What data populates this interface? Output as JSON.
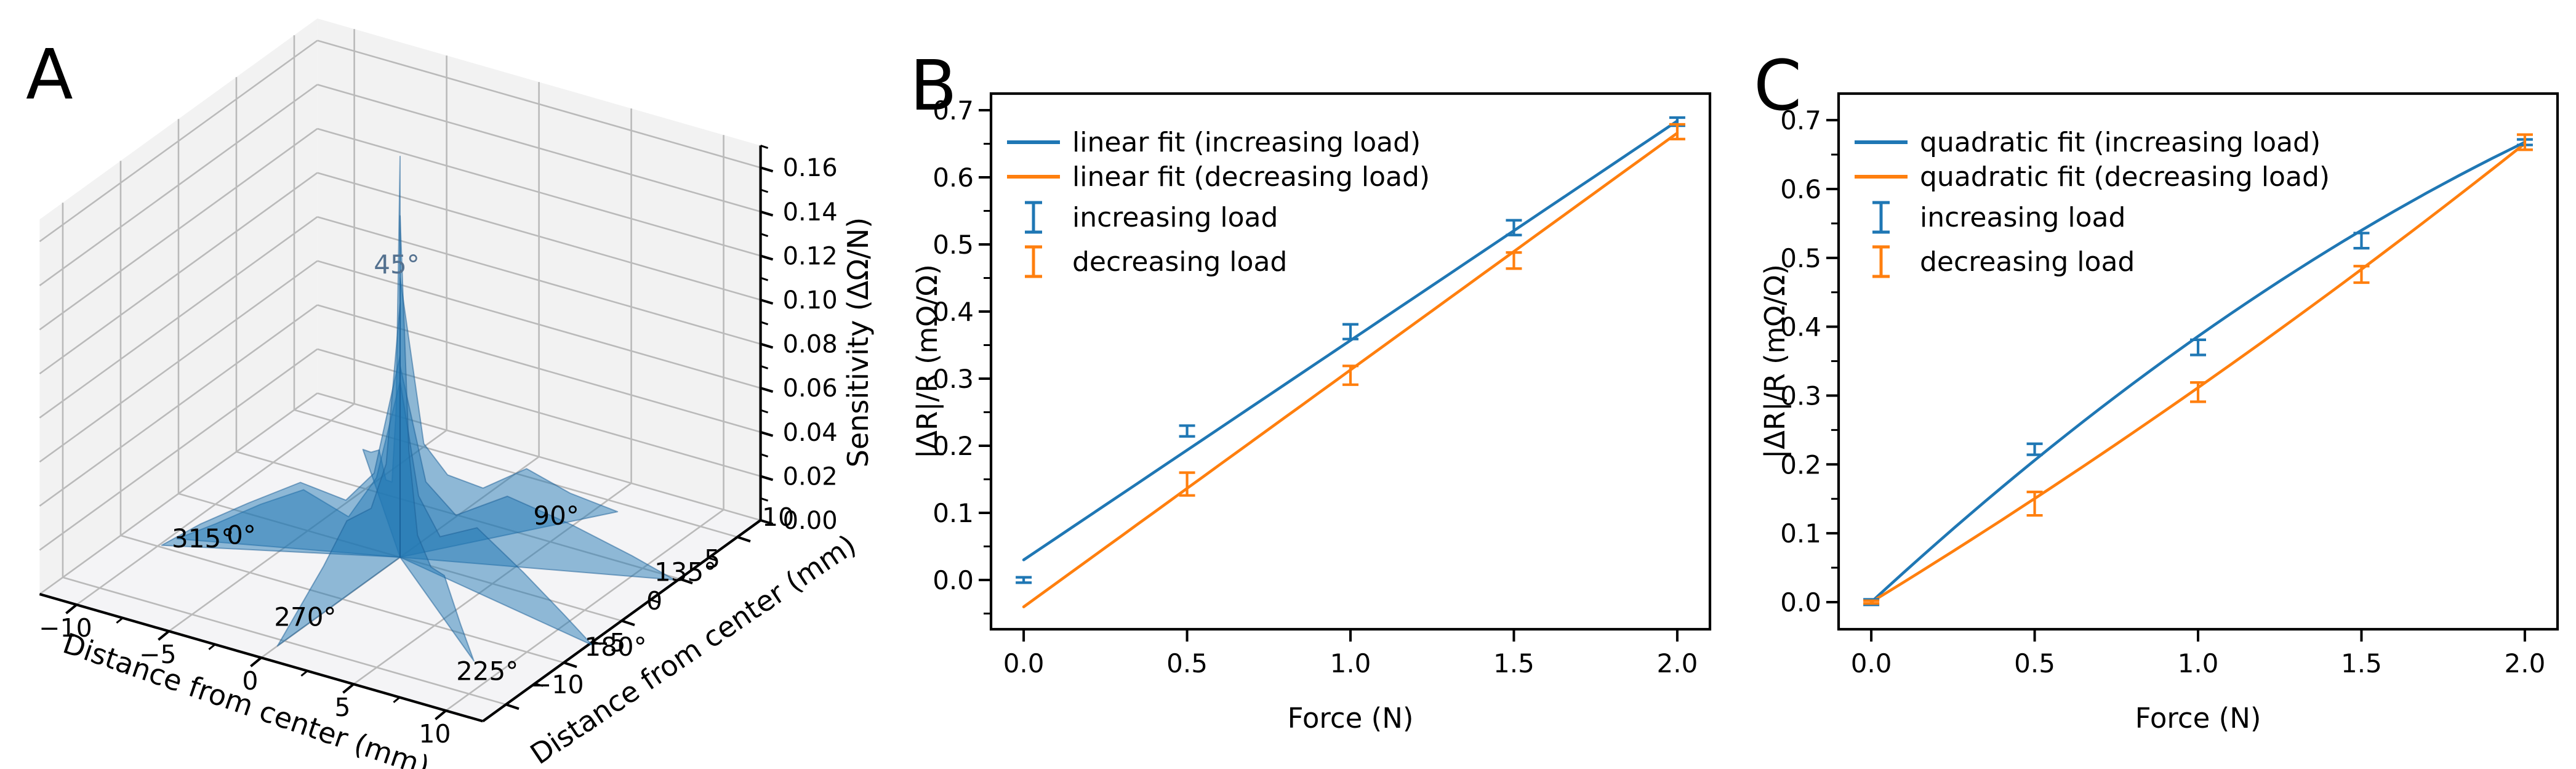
{
  "figure": {
    "background": "#ffffff",
    "colors": {
      "blue": "#1f77b4",
      "orange": "#ff7f0e",
      "grid_gray": "#bababa",
      "pane_gray": "#f2f2f2"
    }
  },
  "chart_data": [
    {
      "id": "A",
      "type": "3d-star-surface",
      "title_letter": "A",
      "xlabel": "Distance from center (mm)",
      "ylabel": "Distance from center (mm)",
      "zlabel": "Sensitivity (ΔΩ/N)",
      "xtick_labels": [
        "−10",
        "−5",
        "0",
        "5",
        "10"
      ],
      "xtick_values": [
        -10,
        -5,
        0,
        5,
        10
      ],
      "ytick_labels": [
        "−10",
        "−5",
        "0",
        "5",
        "10"
      ],
      "ytick_values": [
        -10,
        -5,
        0,
        5,
        10
      ],
      "ztick_labels": [
        "0.00",
        "0.02",
        "0.04",
        "0.06",
        "0.08",
        "0.10",
        "0.12",
        "0.14",
        "0.16"
      ],
      "ztick_values": [
        0.0,
        0.02,
        0.04,
        0.06,
        0.08,
        0.1,
        0.12,
        0.14,
        0.16
      ],
      "xlim": [
        -12,
        12
      ],
      "ylim": [
        -12,
        12
      ],
      "zlim": [
        0,
        0.17
      ],
      "surface_color": "#1f77b4",
      "surface_alpha": 0.48,
      "peak_sensitivity": 0.155,
      "blades": [
        {
          "label": "0°",
          "angle_deg": 202,
          "label_r": 7.4,
          "label_z": 0,
          "profile": [
            [
              0,
              0.068
            ],
            [
              1.1,
              0.03
            ],
            [
              2.4,
              0.014
            ],
            [
              4.5,
              0.023
            ],
            [
              6.5,
              0.016
            ],
            [
              8.6,
              0.007
            ],
            [
              10.4,
              0
            ]
          ]
        },
        {
          "label": "45°",
          "angle_deg": 131,
          "label_r": 1.0,
          "label_z": 0.106,
          "profile": [
            [
              0,
              0.155
            ],
            [
              1.2,
              0.052
            ],
            [
              2.4,
              0.02
            ],
            [
              4.2,
              0.014
            ],
            [
              6.2,
              0.018
            ],
            [
              8.6,
              0.008
            ],
            [
              11.0,
              0
            ]
          ]
        },
        {
          "label": "90°",
          "angle_deg": 57,
          "label_r": 7.9,
          "label_z": 0,
          "profile": [
            [
              0,
              0.108
            ],
            [
              1.2,
              0.042
            ],
            [
              2.4,
              0.028
            ],
            [
              4.2,
              0.02
            ],
            [
              6.4,
              0.024
            ],
            [
              8.6,
              0.011
            ],
            [
              11.0,
              0
            ]
          ]
        },
        {
          "label": "135°",
          "angle_deg": 22,
          "label_r": 13.3,
          "label_z": 0,
          "profile": [
            [
              0,
              0.074
            ],
            [
              1.2,
              0.03
            ],
            [
              2.6,
              0.018
            ],
            [
              5.0,
              0.027
            ],
            [
              8.0,
              0.018
            ],
            [
              10.8,
              0.008
            ],
            [
              12.8,
              0
            ]
          ]
        },
        {
          "label": "180°",
          "angle_deg": -13,
          "label_r": 14.0,
          "label_z": 0,
          "profile": [
            [
              0,
              0.068
            ],
            [
              1.2,
              0.027
            ],
            [
              2.6,
              0.015
            ],
            [
              5.0,
              0.025
            ],
            [
              8.0,
              0.016
            ],
            [
              10.6,
              0.007
            ],
            [
              12.5,
              0
            ]
          ]
        },
        {
          "label": "225°",
          "angle_deg": -40,
          "label_r": 13.0,
          "label_z": 0,
          "profile": [
            [
              0,
              0.132
            ],
            [
              1.3,
              0.046
            ],
            [
              2.6,
              0.018
            ],
            [
              4.6,
              0.013
            ],
            [
              6.6,
              0.017
            ],
            [
              9.0,
              0.007
            ],
            [
              11.0,
              0
            ]
          ]
        },
        {
          "label": "270°",
          "angle_deg": -90,
          "label_r": 8.2,
          "label_z": 0,
          "profile": [
            [
              0,
              0.098
            ],
            [
              1.2,
              0.04
            ],
            [
              2.5,
              0.027
            ],
            [
              4.6,
              0.029
            ],
            [
              6.6,
              0.018
            ],
            [
              8.6,
              0.009
            ],
            [
              10.6,
              0
            ]
          ]
        },
        {
          "label": "315°",
          "angle_deg": -154,
          "label_r": 9.1,
          "label_z": 0,
          "profile": [
            [
              0,
              0.078
            ],
            [
              1.2,
              0.032
            ],
            [
              2.5,
              0.021
            ],
            [
              4.6,
              0.027
            ],
            [
              7.0,
              0.018
            ],
            [
              9.2,
              0.009
            ],
            [
              11.0,
              0
            ]
          ]
        }
      ]
    },
    {
      "id": "B",
      "type": "line+errorbar",
      "title_letter": "B",
      "xlabel": "Force (N)",
      "ylabel": "|ΔR|/R (mΩ/Ω)",
      "xtick_labels": [
        "0.0",
        "0.5",
        "1.0",
        "1.5",
        "2.0"
      ],
      "xtick_values": [
        0.0,
        0.5,
        1.0,
        1.5,
        2.0
      ],
      "ytick_labels": [
        "0.0",
        "0.1",
        "0.2",
        "0.3",
        "0.4",
        "0.5",
        "0.6",
        "0.7"
      ],
      "ytick_values": [
        0.0,
        0.1,
        0.2,
        0.3,
        0.4,
        0.5,
        0.6,
        0.7
      ],
      "xlim": [
        -0.1,
        2.1
      ],
      "ylim": [
        -0.0734,
        0.7248
      ],
      "y_minor_step": 0.05,
      "legend": [
        "linear fit (increasing load)",
        "linear fit (decreasing load)",
        "increasing load",
        "decreasing load"
      ],
      "series": [
        {
          "name": "linear fit (increasing load)",
          "kind": "fit-line",
          "color": "#1f77b4",
          "poly": [
            0.03,
            0.327
          ],
          "x_range": [
            0,
            2
          ]
        },
        {
          "name": "linear fit (decreasing load)",
          "kind": "fit-line",
          "color": "#ff7f0e",
          "poly": [
            -0.04,
            0.353
          ],
          "x_range": [
            0,
            2
          ]
        },
        {
          "name": "increasing load",
          "kind": "errorbar",
          "color": "#1f77b4",
          "x": [
            0.0,
            0.5,
            1.0,
            1.5,
            2.0
          ],
          "y": [
            0.0,
            0.222,
            0.37,
            0.525,
            0.683
          ],
          "yerr": [
            0.004,
            0.008,
            0.011,
            0.011,
            0.006
          ]
        },
        {
          "name": "decreasing load",
          "kind": "errorbar",
          "color": "#ff7f0e",
          "x": [
            0.5,
            1.0,
            1.5,
            2.0
          ],
          "y": [
            0.143,
            0.305,
            0.476,
            0.668
          ],
          "yerr": [
            0.017,
            0.014,
            0.012,
            0.011
          ]
        }
      ]
    },
    {
      "id": "C",
      "type": "line+errorbar",
      "title_letter": "C",
      "xlabel": "Force (N)",
      "ylabel": "|ΔR|/R (mΩ/Ω)",
      "xtick_labels": [
        "0.0",
        "0.5",
        "1.0",
        "1.5",
        "2.0"
      ],
      "xtick_values": [
        0.0,
        0.5,
        1.0,
        1.5,
        2.0
      ],
      "ytick_labels": [
        "0.0",
        "0.1",
        "0.2",
        "0.3",
        "0.4",
        "0.5",
        "0.6",
        "0.7"
      ],
      "ytick_values": [
        0.0,
        0.1,
        0.2,
        0.3,
        0.4,
        0.5,
        0.6,
        0.7
      ],
      "xlim": [
        -0.1,
        2.1
      ],
      "ylim": [
        -0.0394,
        0.7386
      ],
      "y_minor_step": 0.05,
      "legend": [
        "quadratic fit (increasing load)",
        "quadratic fit (decreasing load)",
        "increasing load",
        "decreasing load"
      ],
      "series": [
        {
          "name": "quadratic fit (increasing load)",
          "kind": "fit-line",
          "color": "#1f77b4",
          "poly": [
            0.0,
            0.438,
            -0.052
          ],
          "x_range": [
            0,
            2
          ]
        },
        {
          "name": "quadratic fit (decreasing load)",
          "kind": "fit-line",
          "color": "#ff7f0e",
          "poly": [
            0.0,
            0.29,
            0.0215
          ],
          "x_range": [
            0,
            2
          ]
        },
        {
          "name": "increasing load",
          "kind": "errorbar",
          "color": "#1f77b4",
          "x": [
            0.0,
            0.5,
            1.0,
            1.5,
            2.0
          ],
          "y": [
            0.0,
            0.222,
            0.37,
            0.525,
            0.668
          ],
          "yerr": [
            0.004,
            0.008,
            0.011,
            0.011,
            0.004
          ]
        },
        {
          "name": "decreasing load",
          "kind": "errorbar",
          "color": "#ff7f0e",
          "x": [
            0.0,
            0.5,
            1.0,
            1.5,
            2.0
          ],
          "y": [
            0.0,
            0.143,
            0.305,
            0.476,
            0.668
          ],
          "yerr": [
            0.002,
            0.017,
            0.014,
            0.012,
            0.011
          ]
        }
      ]
    }
  ]
}
